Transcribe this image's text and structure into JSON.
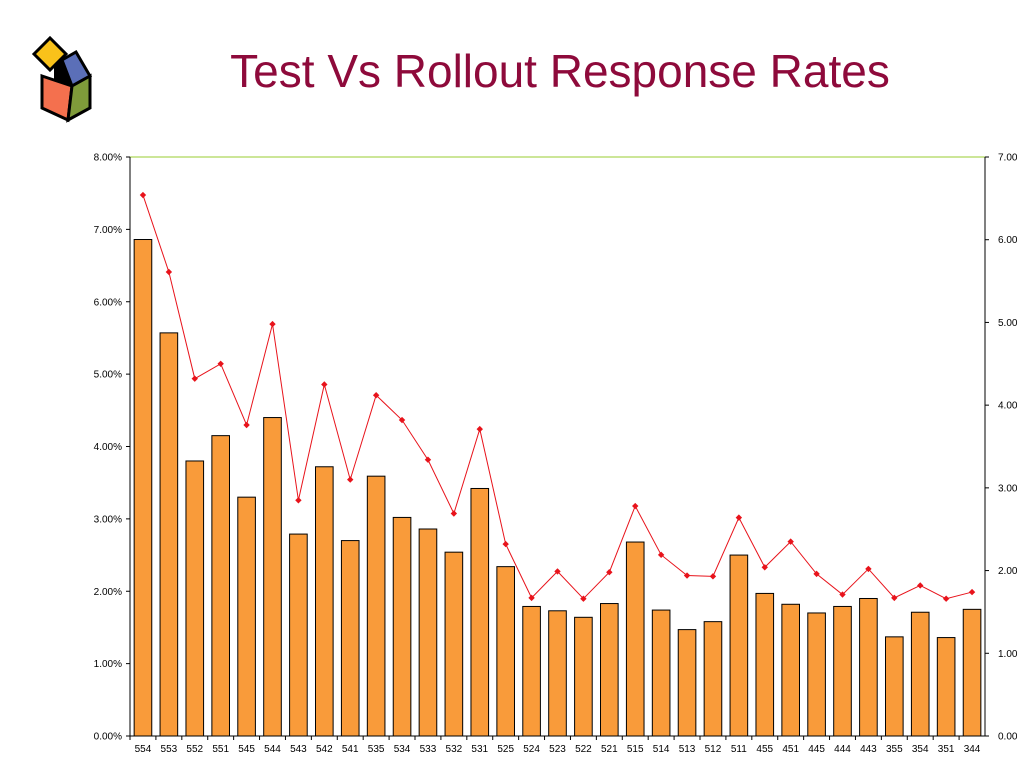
{
  "title": "Test Vs Rollout Response Rates",
  "logo": {
    "icon": "colored-cube-logo-icon",
    "colors": [
      "#f9c21a",
      "#5b6fb8",
      "#f4704e",
      "#7f9b3a",
      "#000000"
    ]
  },
  "chart_data": {
    "type": "bar",
    "categories": [
      "554",
      "553",
      "552",
      "551",
      "545",
      "544",
      "543",
      "542",
      "541",
      "535",
      "534",
      "533",
      "532",
      "531",
      "525",
      "524",
      "523",
      "522",
      "521",
      "515",
      "514",
      "513",
      "512",
      "511",
      "455",
      "451",
      "445",
      "444",
      "443",
      "355",
      "354",
      "351",
      "344"
    ],
    "series": [
      {
        "type": "bar",
        "axis": "left",
        "color": "#f99b3a",
        "values": [
          0.0686,
          0.0557,
          0.038,
          0.0415,
          0.033,
          0.044,
          0.0279,
          0.0372,
          0.027,
          0.0359,
          0.0302,
          0.0286,
          0.0254,
          0.0342,
          0.0234,
          0.0179,
          0.0173,
          0.0164,
          0.0183,
          0.0268,
          0.0174,
          0.0147,
          0.0158,
          0.025,
          0.0197,
          0.0182,
          0.017,
          0.0179,
          0.019,
          0.0137,
          0.0171,
          0.0136,
          0.0175
        ]
      },
      {
        "type": "line",
        "axis": "right",
        "color": "#e8131b",
        "values": [
          0.0654,
          0.0561,
          0.0432,
          0.045,
          0.0376,
          0.0498,
          0.0285,
          0.0425,
          0.031,
          0.0412,
          0.0382,
          0.0334,
          0.0269,
          0.0371,
          0.0232,
          0.0167,
          0.0199,
          0.0166,
          0.0198,
          0.0278,
          0.0219,
          0.0194,
          0.0193,
          0.0264,
          0.0204,
          0.0235,
          0.0196,
          0.0171,
          0.0202,
          0.0167,
          0.0182,
          0.0166,
          0.0174
        ]
      }
    ],
    "y_left": {
      "ylim": [
        0,
        0.08
      ],
      "ticks": [
        "0.00%",
        "1.00%",
        "2.00%",
        "3.00%",
        "4.00%",
        "5.00%",
        "6.00%",
        "7.00%",
        "8.00%"
      ]
    },
    "y_right": {
      "ylim": [
        0,
        0.07
      ],
      "ticks": [
        "0.00",
        "1.00",
        "2.00",
        "3.00",
        "4.00",
        "5.00",
        "6.00",
        "7.00"
      ]
    },
    "grid": false,
    "legend": "none"
  }
}
